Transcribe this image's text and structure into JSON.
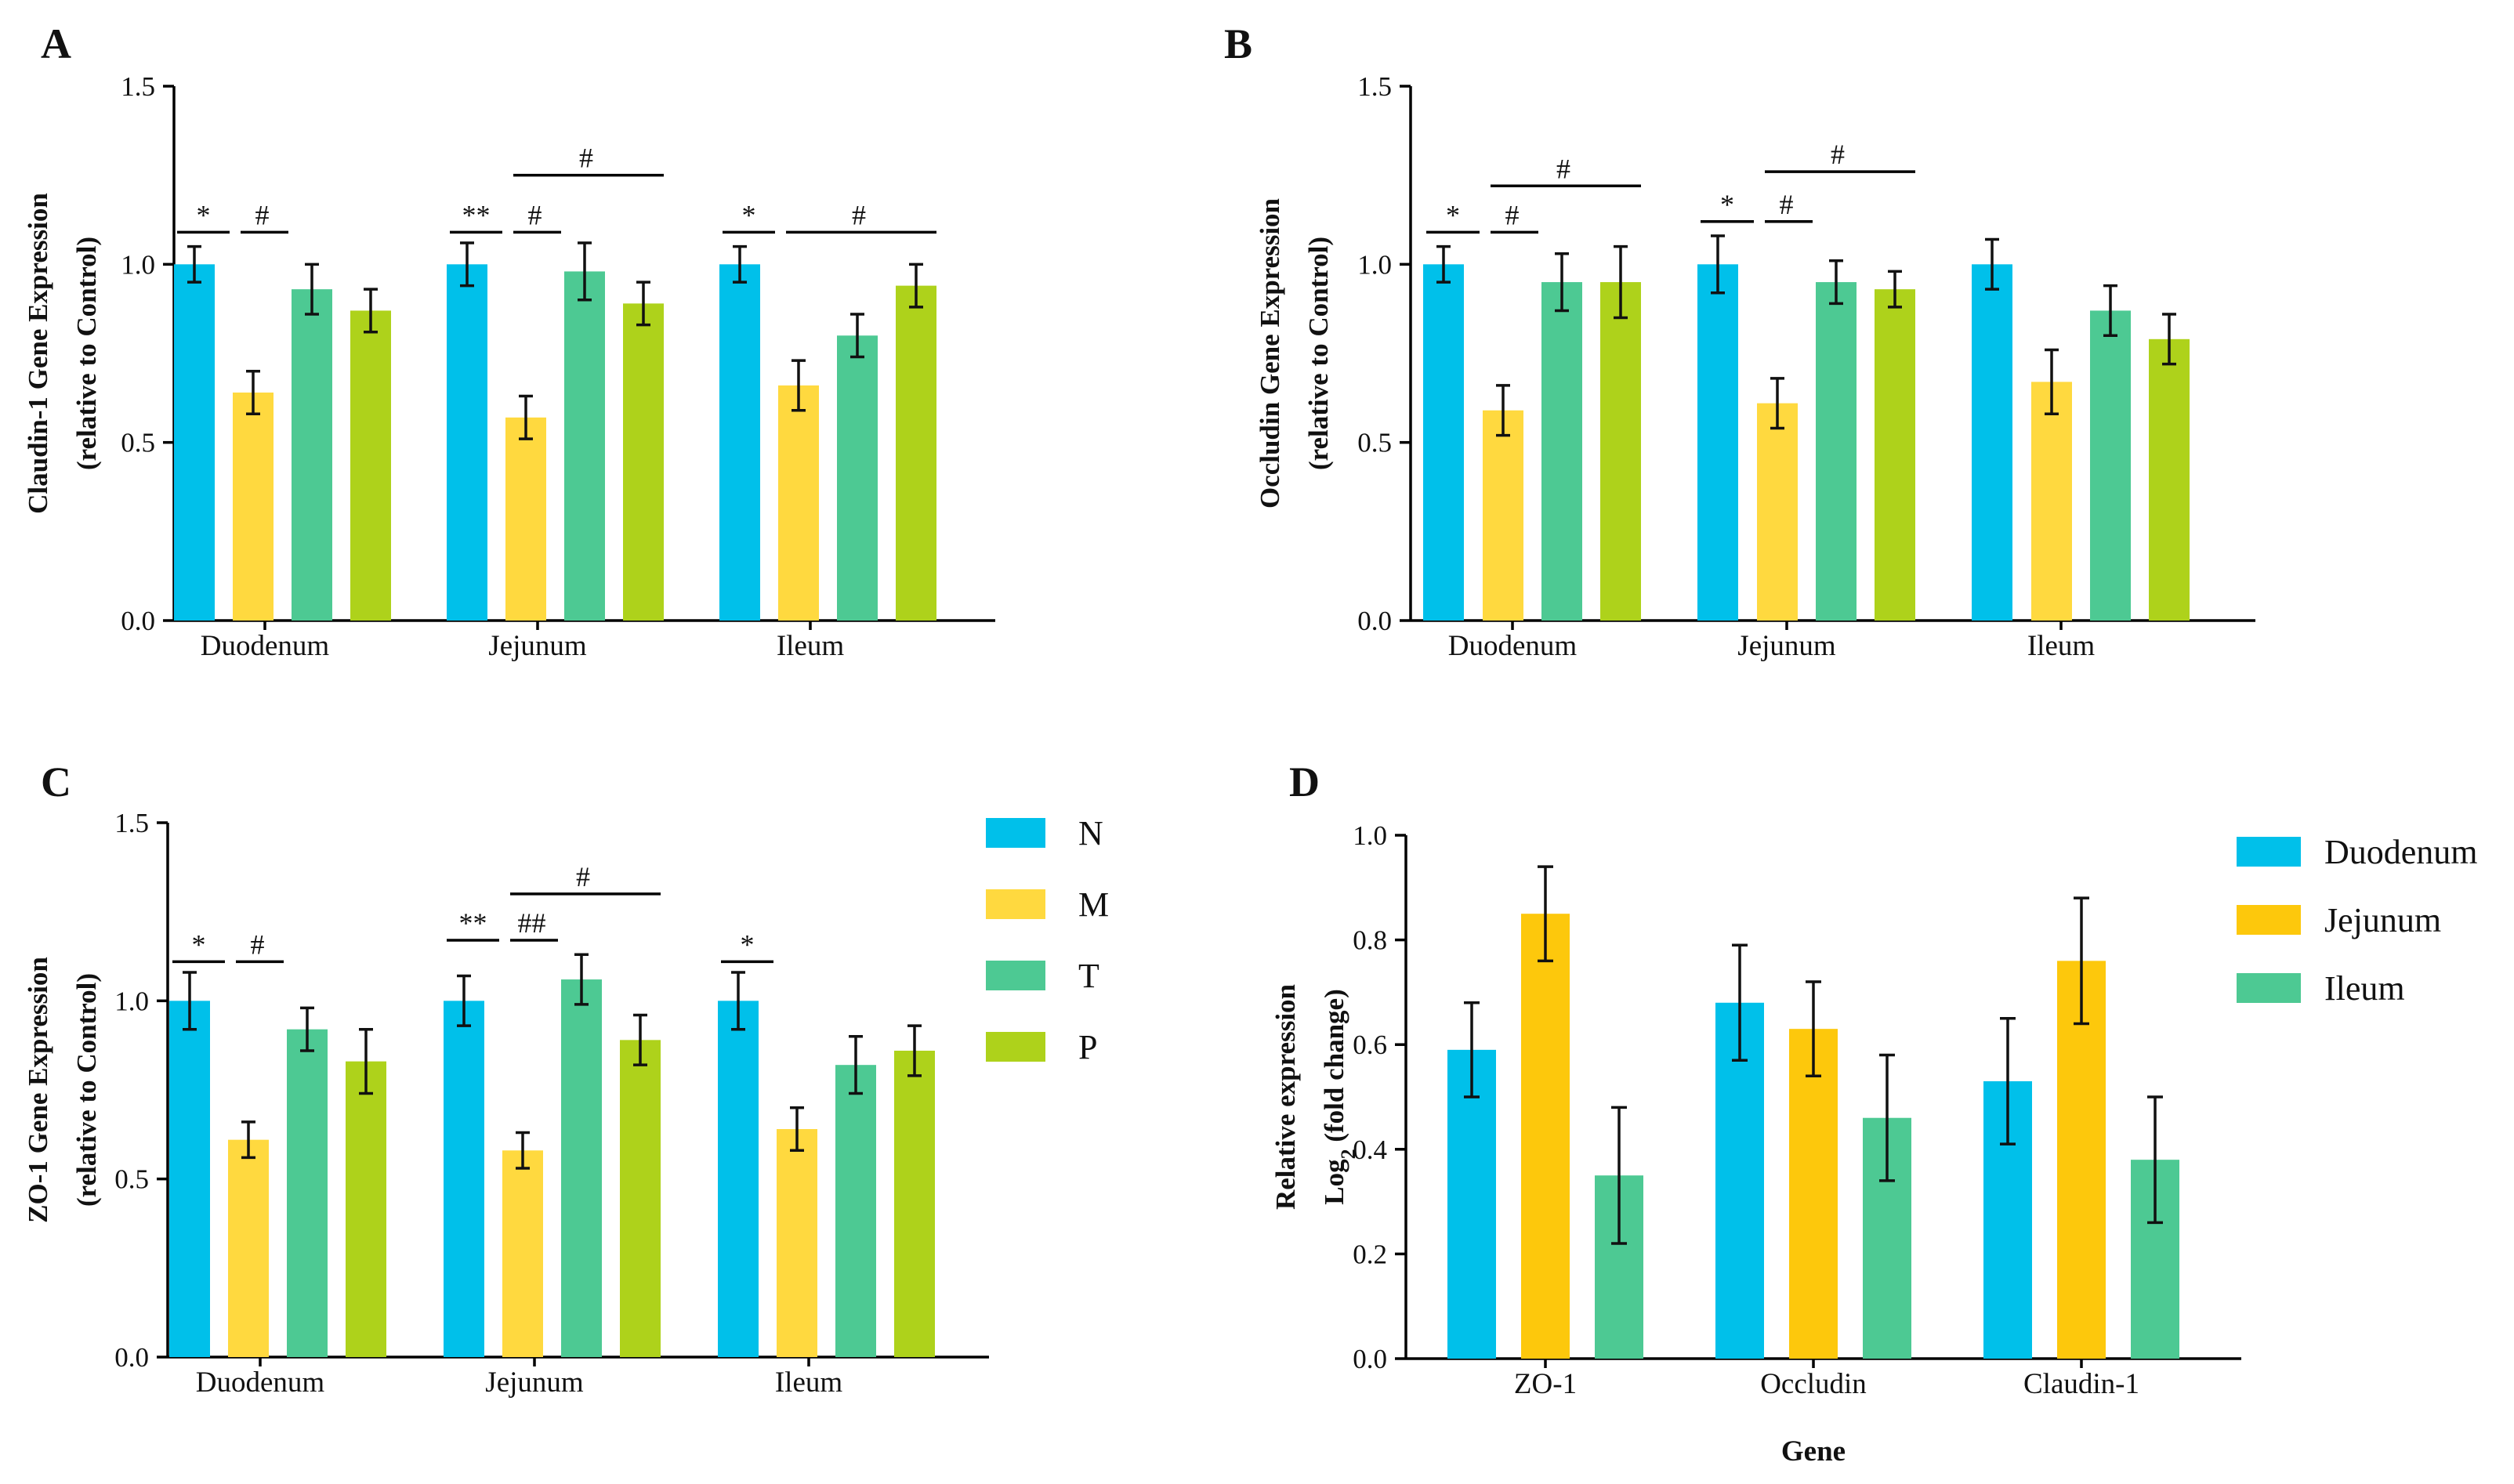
{
  "colors": {
    "N": "#00c0ea",
    "M": "#ffd93f",
    "T": "#4dc993",
    "P": "#aed21b",
    "Duodenum": "#00c0ea",
    "Jejunum": "#fdc80c",
    "Ileum": "#4dc993"
  },
  "chart_data": [
    {
      "panel": "A",
      "type": "bar",
      "ylabel": [
        "Claudin-1 Gene Expression",
        "(relative to Control)"
      ],
      "xlabel": "",
      "ylim": [
        0,
        1.5
      ],
      "yticks": [
        "0.0",
        "0.5",
        "1.0",
        "1.5"
      ],
      "categories": [
        "Duodenum",
        "Jejunum",
        "Ileum"
      ],
      "series": [
        {
          "name": "N",
          "values": [
            1.0,
            1.0,
            1.0
          ],
          "errors": [
            0.05,
            0.06,
            0.05
          ]
        },
        {
          "name": "M",
          "values": [
            0.64,
            0.57,
            0.66
          ],
          "errors": [
            0.06,
            0.06,
            0.07
          ]
        },
        {
          "name": "T",
          "values": [
            0.93,
            0.98,
            0.8
          ],
          "errors": [
            0.07,
            0.08,
            0.06
          ]
        },
        {
          "name": "P",
          "values": [
            0.87,
            0.89,
            0.94
          ],
          "errors": [
            0.06,
            0.06,
            0.06
          ]
        }
      ],
      "annotations": [
        {
          "text": "*",
          "cat": 0,
          "from": 0,
          "to": 1,
          "level": 1.09
        },
        {
          "text": "#",
          "cat": 0,
          "from": 1,
          "to": 2,
          "level": 1.09
        },
        {
          "text": "**",
          "cat": 1,
          "from": 0,
          "to": 1,
          "level": 1.09
        },
        {
          "text": "#",
          "cat": 1,
          "from": 1,
          "to": 2,
          "level": 1.09
        },
        {
          "text": "#",
          "cat": 1,
          "from": 1,
          "to": 3,
          "level": 1.25
        },
        {
          "text": "*",
          "cat": 2,
          "from": 0,
          "to": 1,
          "level": 1.09
        },
        {
          "text": "#",
          "cat": 2,
          "from": 1,
          "to": 3,
          "level": 1.09
        }
      ]
    },
    {
      "panel": "B",
      "type": "bar",
      "ylabel": [
        "Occludin Gene Expression",
        "(relative to Control)"
      ],
      "xlabel": "",
      "ylim": [
        0,
        1.5
      ],
      "yticks": [
        "0.0",
        "0.5",
        "1.0",
        "1.5"
      ],
      "categories": [
        "Duodenum",
        "Jejunum",
        "Ileum"
      ],
      "series": [
        {
          "name": "N",
          "values": [
            1.0,
            1.0,
            1.0
          ],
          "errors": [
            0.05,
            0.08,
            0.07
          ]
        },
        {
          "name": "M",
          "values": [
            0.59,
            0.61,
            0.67
          ],
          "errors": [
            0.07,
            0.07,
            0.09
          ]
        },
        {
          "name": "T",
          "values": [
            0.95,
            0.95,
            0.87
          ],
          "errors": [
            0.08,
            0.06,
            0.07
          ]
        },
        {
          "name": "P",
          "values": [
            0.95,
            0.93,
            0.79
          ],
          "errors": [
            0.1,
            0.05,
            0.07
          ]
        }
      ],
      "annotations": [
        {
          "text": "*",
          "cat": 0,
          "from": 0,
          "to": 1,
          "level": 1.09
        },
        {
          "text": "#",
          "cat": 0,
          "from": 1,
          "to": 2,
          "level": 1.09
        },
        {
          "text": "#",
          "cat": 0,
          "from": 1,
          "to": 3,
          "level": 1.22
        },
        {
          "text": "*",
          "cat": 1,
          "from": 0,
          "to": 1,
          "level": 1.12
        },
        {
          "text": "#",
          "cat": 1,
          "from": 1,
          "to": 2,
          "level": 1.12
        },
        {
          "text": "#",
          "cat": 1,
          "from": 1,
          "to": 3,
          "level": 1.26
        }
      ]
    },
    {
      "panel": "C",
      "type": "bar",
      "ylabel": [
        "ZO-1 Gene Expression",
        "(relative to Control)"
      ],
      "xlabel": "",
      "ylim": [
        0,
        1.5
      ],
      "yticks": [
        "0.0",
        "0.5",
        "1.0",
        "1.5"
      ],
      "categories": [
        "Duodenum",
        "Jejunum",
        "Ileum"
      ],
      "series": [
        {
          "name": "N",
          "values": [
            1.0,
            1.0,
            1.0
          ],
          "errors": [
            0.08,
            0.07,
            0.08
          ]
        },
        {
          "name": "M",
          "values": [
            0.61,
            0.58,
            0.64
          ],
          "errors": [
            0.05,
            0.05,
            0.06
          ]
        },
        {
          "name": "T",
          "values": [
            0.92,
            1.06,
            0.82
          ],
          "errors": [
            0.06,
            0.07,
            0.08
          ]
        },
        {
          "name": "P",
          "values": [
            0.83,
            0.89,
            0.86
          ],
          "errors": [
            0.09,
            0.07,
            0.07
          ]
        }
      ],
      "annotations": [
        {
          "text": "*",
          "cat": 0,
          "from": 0,
          "to": 1,
          "level": 1.11
        },
        {
          "text": "#",
          "cat": 0,
          "from": 1,
          "to": 2,
          "level": 1.11
        },
        {
          "text": "**",
          "cat": 1,
          "from": 0,
          "to": 1,
          "level": 1.17
        },
        {
          "text": "##",
          "cat": 1,
          "from": 1,
          "to": 2,
          "level": 1.17
        },
        {
          "text": "#",
          "cat": 1,
          "from": 1,
          "to": 3,
          "level": 1.3
        },
        {
          "text": "*",
          "cat": 2,
          "from": 0,
          "to": 1,
          "level": 1.11
        }
      ]
    },
    {
      "panel": "D",
      "type": "bar",
      "ylabel": [
        "Relative expression",
        "Log",
        "2",
        " (fold change)"
      ],
      "xlabel": "Gene",
      "ylim": [
        0,
        1.0
      ],
      "yticks": [
        "0.0",
        "0.2",
        "0.4",
        "0.6",
        "0.8",
        "1.0"
      ],
      "categories": [
        "ZO-1",
        "Occludin",
        "Claudin-1"
      ],
      "series": [
        {
          "name": "Duodenum",
          "values": [
            0.59,
            0.68,
            0.53
          ],
          "errors": [
            0.09,
            0.11,
            0.12
          ]
        },
        {
          "name": "Jejunum",
          "values": [
            0.85,
            0.63,
            0.76
          ],
          "errors": [
            0.09,
            0.09,
            0.12
          ]
        },
        {
          "name": "Ileum",
          "values": [
            0.35,
            0.46,
            0.38
          ],
          "errors": [
            0.13,
            0.12,
            0.12
          ]
        }
      ],
      "annotations": []
    }
  ],
  "legends": {
    "treatment": [
      "N",
      "M",
      "T",
      "P"
    ],
    "segment": [
      "Duodenum",
      "Jejunum",
      "Ileum"
    ]
  }
}
